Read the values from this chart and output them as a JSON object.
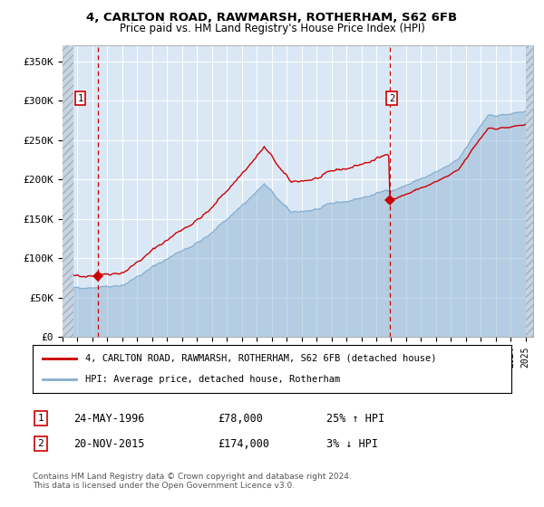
{
  "title1": "4, CARLTON ROAD, RAWMARSH, ROTHERHAM, S62 6FB",
  "title2": "Price paid vs. HM Land Registry's House Price Index (HPI)",
  "legend_line1": "4, CARLTON ROAD, RAWMARSH, ROTHERHAM, S62 6FB (detached house)",
  "legend_line2": "HPI: Average price, detached house, Rotherham",
  "marker1_date": "24-MAY-1996",
  "marker1_price": "£78,000",
  "marker1_hpi": "25% ↑ HPI",
  "marker2_date": "20-NOV-2015",
  "marker2_price": "£174,000",
  "marker2_hpi": "3% ↓ HPI",
  "footnote": "Contains HM Land Registry data © Crown copyright and database right 2024.\nThis data is licensed under the Open Government Licence v3.0.",
  "ylabel_ticks": [
    "£0",
    "£50K",
    "£100K",
    "£150K",
    "£200K",
    "£250K",
    "£300K",
    "£350K"
  ],
  "ylabel_values": [
    0,
    50000,
    100000,
    150000,
    200000,
    250000,
    300000,
    350000
  ],
  "ylim": [
    0,
    370000
  ],
  "hpi_color": "#87AECF",
  "price_color": "#CC0000",
  "marker_color": "#CC0000",
  "bg_color": "#DAE8F5",
  "grid_color": "#FFFFFF",
  "marker1_x_year": 1996.38,
  "marker1_y": 78000,
  "marker2_x_year": 2015.89,
  "marker2_y": 174000,
  "vline1_x": 1996.38,
  "vline2_x": 2015.89,
  "xmin": 1994.0,
  "xmax": 2025.5
}
